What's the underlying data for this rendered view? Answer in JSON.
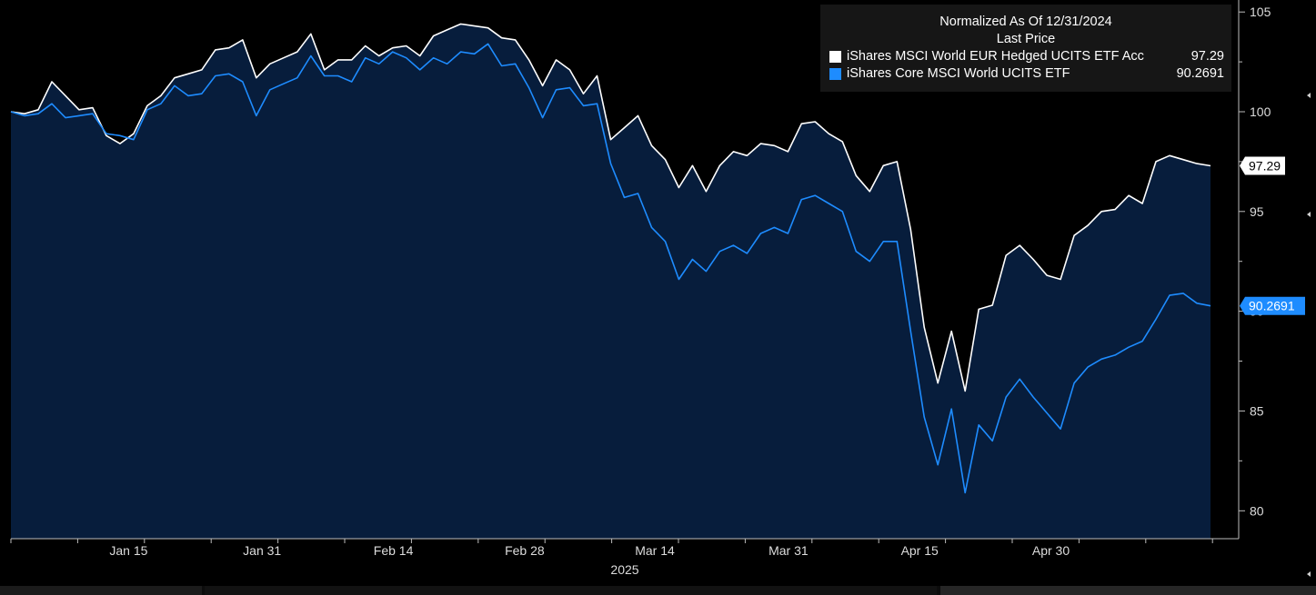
{
  "chart_data": {
    "type": "area",
    "title": "Normalized As Of 12/31/2024",
    "subtitle": "Last Price",
    "xlabel": "2025",
    "ylabel": "",
    "ylim": [
      78.6,
      105.6
    ],
    "xlim": [
      0,
      106
    ],
    "y_ticks": [
      80,
      85,
      90,
      95,
      100,
      105
    ],
    "x_ticks": [
      {
        "label": "Jan 15",
        "x": 10.4
      },
      {
        "label": "Jan 31",
        "x": 22.2
      },
      {
        "label": "Feb 14",
        "x": 33.8
      },
      {
        "label": "Feb 28",
        "x": 45.4
      },
      {
        "label": "Mar 14",
        "x": 56.9
      },
      {
        "label": "Mar 31",
        "x": 68.7
      },
      {
        "label": "Apr 15",
        "x": 80.3
      },
      {
        "label": "Apr 30",
        "x": 91.9
      }
    ],
    "legend_position": "top-right",
    "grid": false,
    "series": [
      {
        "name": "iShares MSCI World EUR Hedged UCITS ETF Acc",
        "last_value": "97.29",
        "color": "#ffffff",
        "values": [
          100.0,
          99.9,
          100.1,
          101.5,
          100.8,
          100.1,
          100.2,
          98.8,
          98.4,
          98.9,
          100.3,
          100.8,
          101.7,
          101.9,
          102.1,
          103.1,
          103.2,
          103.6,
          101.7,
          102.4,
          102.7,
          103.0,
          103.9,
          102.1,
          102.6,
          102.6,
          103.3,
          102.8,
          103.2,
          103.3,
          102.8,
          103.8,
          104.1,
          104.4,
          104.3,
          104.2,
          103.7,
          103.6,
          102.6,
          101.3,
          102.6,
          102.1,
          100.9,
          101.8,
          98.6,
          99.2,
          99.8,
          98.3,
          97.6,
          96.2,
          97.3,
          96.0,
          97.3,
          98.0,
          97.8,
          98.4,
          98.3,
          98.0,
          99.4,
          99.5,
          98.9,
          98.5,
          96.8,
          96.0,
          97.3,
          97.5,
          94.1,
          89.2,
          86.4,
          89.0,
          86.0,
          90.1,
          90.3,
          92.8,
          93.3,
          92.6,
          91.8,
          91.6,
          93.8,
          94.3,
          95.0,
          95.1,
          95.8,
          95.4,
          97.5,
          97.8,
          97.6,
          97.4,
          97.29
        ]
      },
      {
        "name": "iShares Core MSCI World UCITS ETF",
        "last_value": "90.2691",
        "color": "#1e8cff",
        "values": [
          100.0,
          99.8,
          99.9,
          100.4,
          99.7,
          99.8,
          99.9,
          98.9,
          98.8,
          98.6,
          100.1,
          100.4,
          101.3,
          100.8,
          100.9,
          101.8,
          101.9,
          101.5,
          99.8,
          101.1,
          101.4,
          101.7,
          102.8,
          101.8,
          101.8,
          101.5,
          102.7,
          102.4,
          103.0,
          102.7,
          102.1,
          102.7,
          102.4,
          103.0,
          102.9,
          103.4,
          102.3,
          102.4,
          101.2,
          99.7,
          101.1,
          101.2,
          100.3,
          100.4,
          97.4,
          95.7,
          95.9,
          94.2,
          93.5,
          91.6,
          92.6,
          92.0,
          93.0,
          93.3,
          92.9,
          93.9,
          94.2,
          93.9,
          95.6,
          95.8,
          95.4,
          95.0,
          93.0,
          92.5,
          93.5,
          93.5,
          89.0,
          84.7,
          82.3,
          85.1,
          80.9,
          84.3,
          83.5,
          85.7,
          86.6,
          85.7,
          84.9,
          84.1,
          86.4,
          87.2,
          87.6,
          87.8,
          88.2,
          88.5,
          89.6,
          90.8,
          90.9,
          90.4,
          90.2691
        ]
      }
    ]
  }
}
